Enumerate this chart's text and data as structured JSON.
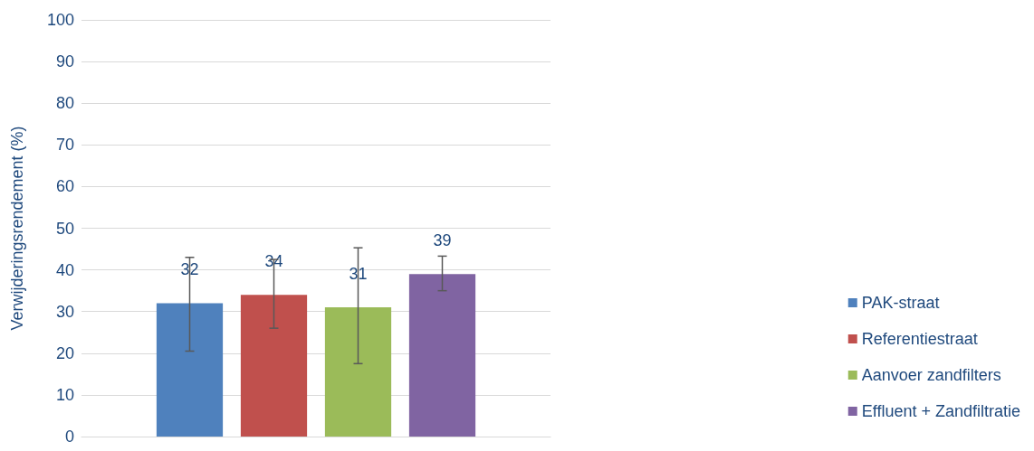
{
  "chart_data": {
    "type": "bar",
    "ylabel": "Verwijderingsrendement (%)",
    "categories": [
      null
    ],
    "series": [
      {
        "name": "PAK-straat",
        "color": "#4f81bd",
        "values": [
          32
        ],
        "errors": [
          [
            20.5,
            43
          ]
        ]
      },
      {
        "name": "Referentiestraat",
        "color": "#c0504d",
        "values": [
          34
        ],
        "errors": [
          [
            26,
            42.5
          ]
        ]
      },
      {
        "name": "Aanvoer zandfilters",
        "color": "#9bbb59",
        "values": [
          31
        ],
        "errors": [
          [
            17.5,
            45.3
          ]
        ]
      },
      {
        "name": "Effluent + Zandfiltratie",
        "color": "#8064a2",
        "values": [
          39
        ],
        "errors": [
          [
            35,
            43.3
          ]
        ]
      }
    ],
    "ylim": [
      0,
      100
    ],
    "yticks": [
      0,
      10,
      20,
      30,
      40,
      50,
      60,
      70,
      80,
      90,
      100
    ],
    "grid": "y",
    "legend": "right",
    "data_labels": true
  }
}
